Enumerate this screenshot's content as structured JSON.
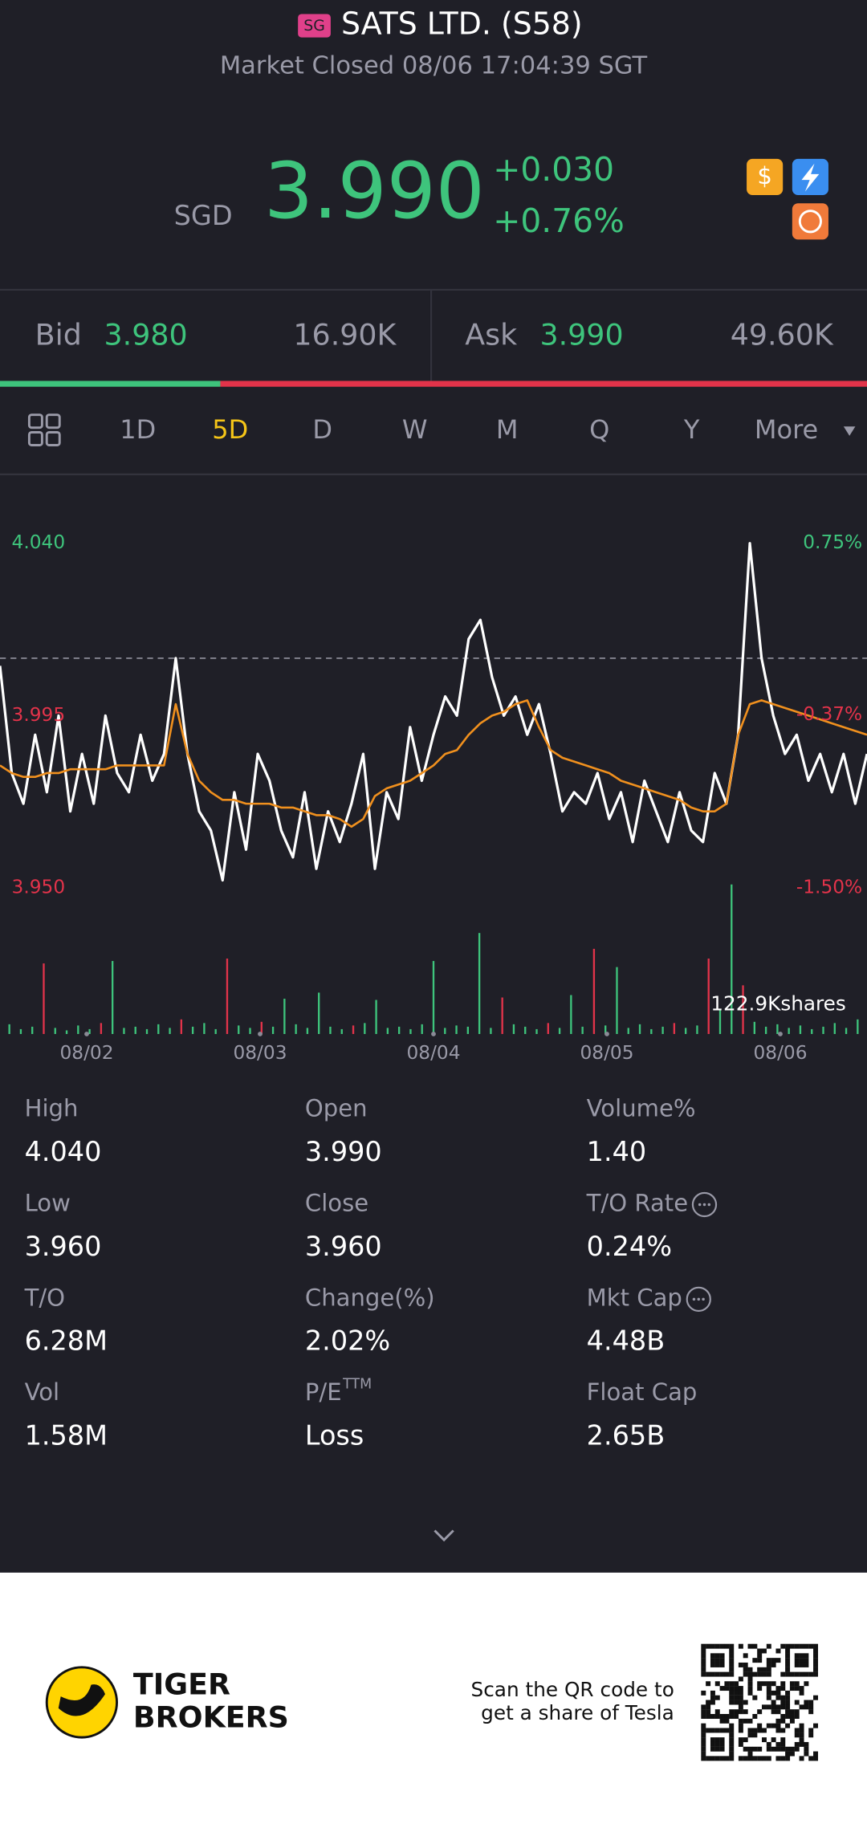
{
  "header": {
    "exchange": "SG",
    "title": "SATS LTD. (S58)",
    "status": "Market Closed 08/06 17:04:39 SGT"
  },
  "quote": {
    "currency": "SGD",
    "price": "3.990",
    "change": "+0.030",
    "change_pct": "+0.76%"
  },
  "order_book": {
    "bid_label": "Bid",
    "bid": "3.980",
    "bid_size": {
      "value": 16.9,
      "label": "16.90K"
    },
    "ask_label": "Ask",
    "ask": "3.990",
    "ask_size": {
      "value": 49.6,
      "label": "49.60K"
    }
  },
  "tabs": {
    "items": [
      "1D",
      "5D",
      "D",
      "W",
      "M",
      "Q",
      "Y",
      "More"
    ],
    "active": 1
  },
  "chart_data": {
    "type": "line",
    "xtick_labels": [
      "08/02",
      "08/03",
      "08/04",
      "08/05",
      "08/06"
    ],
    "series": [
      {
        "color": "#ffffff",
        "values": [
          4.008,
          3.98,
          3.972,
          3.99,
          3.975,
          3.995,
          3.97,
          3.985,
          3.972,
          3.995,
          3.98,
          3.975,
          3.99,
          3.978,
          3.985,
          4.01,
          3.985,
          3.97,
          3.965,
          3.952,
          3.975,
          3.96,
          3.985,
          3.978,
          3.965,
          3.958,
          3.975,
          3.955,
          3.97,
          3.962,
          3.972,
          3.985,
          3.955,
          3.975,
          3.968,
          3.992,
          3.978,
          3.99,
          4.0,
          3.995,
          4.015,
          4.02,
          4.005,
          3.995,
          4.0,
          3.99,
          3.998,
          3.985,
          3.97,
          3.975,
          3.972,
          3.98,
          3.968,
          3.975,
          3.962,
          3.978,
          3.97,
          3.962,
          3.975,
          3.965,
          3.962,
          3.98,
          3.972,
          3.99,
          4.04,
          4.01,
          3.995,
          3.985,
          3.99,
          3.978,
          3.985,
          3.975,
          3.985,
          3.972,
          3.985
        ]
      },
      {
        "color": "#f0901e",
        "values": [
          3.982,
          3.98,
          3.979,
          3.979,
          3.98,
          3.98,
          3.981,
          3.981,
          3.981,
          3.981,
          3.982,
          3.982,
          3.982,
          3.982,
          3.982,
          3.998,
          3.985,
          3.978,
          3.975,
          3.973,
          3.973,
          3.972,
          3.972,
          3.972,
          3.971,
          3.971,
          3.97,
          3.969,
          3.969,
          3.968,
          3.966,
          3.968,
          3.974,
          3.976,
          3.977,
          3.978,
          3.98,
          3.982,
          3.985,
          3.986,
          3.99,
          3.993,
          3.995,
          3.996,
          3.998,
          3.999,
          3.992,
          3.986,
          3.984,
          3.983,
          3.982,
          3.981,
          3.98,
          3.978,
          3.977,
          3.976,
          3.975,
          3.974,
          3.973,
          3.971,
          3.97,
          3.97,
          3.972,
          3.99,
          3.998,
          3.999,
          3.998,
          3.997,
          3.996,
          3.995,
          3.994,
          3.993,
          3.992,
          3.991,
          3.99
        ]
      }
    ],
    "ylim": [
      3.95,
      4.04
    ],
    "yticks": [
      {
        "value": 3.95,
        "label": "3.950"
      },
      {
        "value": 3.995,
        "label": "3.995"
      },
      {
        "value": 4.04,
        "label": "4.040"
      }
    ],
    "y2lim": [
      -1.5,
      0.75
    ],
    "y2ticks": [
      {
        "value": -1.5,
        "label": "-1.50%"
      },
      {
        "value": -0.37,
        "label": "-0.37%"
      },
      {
        "value": 0.75,
        "label": "0.75%"
      }
    ],
    "reference_line": 4.01,
    "up_color": "#3ec47c",
    "down_color": "#e2334a",
    "volume": {
      "label": "122.9Kshares",
      "ylim": [
        0,
        122.9
      ],
      "values": [
        8,
        4,
        6,
        58,
        5,
        3,
        7,
        4,
        9,
        60,
        5,
        6,
        4,
        8,
        5,
        12,
        6,
        9,
        4,
        62,
        7,
        5,
        10,
        6,
        29,
        8,
        5,
        34,
        6,
        4,
        7,
        9,
        28,
        5,
        6,
        4,
        8,
        60,
        5,
        7,
        6,
        83,
        5,
        30,
        8,
        6,
        4,
        9,
        5,
        32,
        6,
        70,
        7,
        55,
        5,
        8,
        4,
        6,
        9,
        5,
        7,
        62,
        20,
        122.9,
        40,
        10,
        6,
        8,
        5,
        7,
        4,
        6,
        9,
        5,
        12
      ],
      "directions": [
        "up",
        "up",
        "up",
        "down",
        "up",
        "up",
        "up",
        "up",
        "down",
        "up",
        "up",
        "up",
        "up",
        "up",
        "up",
        "down",
        "up",
        "up",
        "up",
        "down",
        "up",
        "up",
        "down",
        "up",
        "up",
        "up",
        "up",
        "up",
        "up",
        "up",
        "down",
        "up",
        "up",
        "up",
        "up",
        "up",
        "up",
        "up",
        "up",
        "up",
        "up",
        "up",
        "up",
        "down",
        "up",
        "up",
        "up",
        "down",
        "up",
        "up",
        "up",
        "down",
        "up",
        "up",
        "up",
        "up",
        "up",
        "up",
        "down",
        "up",
        "up",
        "down",
        "up",
        "up",
        "down",
        "up",
        "up",
        "up",
        "up",
        "up",
        "up",
        "up",
        "up",
        "up",
        "up"
      ]
    }
  },
  "stats": [
    {
      "label": "High",
      "value": "4.040"
    },
    {
      "label": "Open",
      "value": "3.990"
    },
    {
      "label": "Volume%",
      "value": "1.40"
    },
    {
      "label": "Low",
      "value": "3.960"
    },
    {
      "label": "Close",
      "value": "3.960"
    },
    {
      "label": "T/O Rate",
      "value": "0.24%",
      "info": true
    },
    {
      "label": "T/O",
      "value": "6.28M"
    },
    {
      "label": "Change(%)",
      "value": "2.02%"
    },
    {
      "label": "Mkt Cap",
      "value": "4.48B",
      "info": true
    },
    {
      "label": "Vol",
      "value": "1.58M"
    },
    {
      "label": "P/E",
      "sup": "TTM",
      "value": "Loss"
    },
    {
      "label": "Float Cap",
      "value": "2.65B"
    }
  ],
  "footer": {
    "brand": [
      "TIGER",
      "BROKERS"
    ],
    "promo": [
      "Scan the QR code to",
      "get a share of Tesla"
    ]
  }
}
